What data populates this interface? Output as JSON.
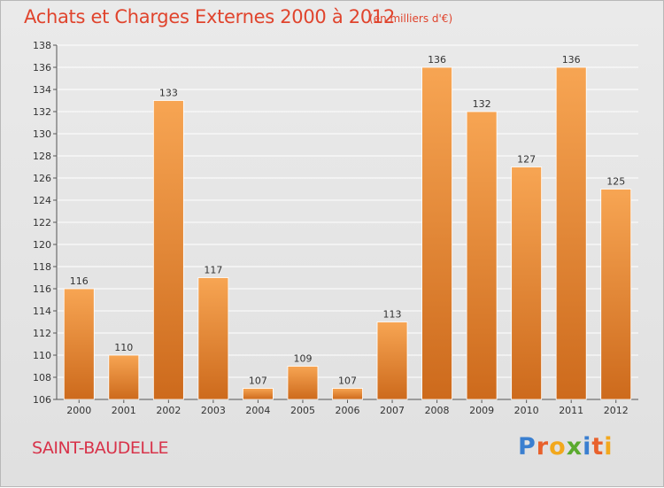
{
  "title": "Achats et Charges Externes 2000 à 2012",
  "subtitle": "(en milliers d'€)",
  "location": "SAINT-BAUDELLE",
  "brand": {
    "name": "Proxiti",
    "letters": [
      "P",
      "r",
      "o",
      "x",
      "i",
      "t",
      "i"
    ],
    "letter_colors": [
      "#3a7fd0",
      "#e8612c",
      "#f2a81d",
      "#5aaa2e",
      "#3a7fd0",
      "#e8612c",
      "#f2a81d"
    ]
  },
  "colors": {
    "bar_top": "#f7a553",
    "bar_bottom": "#cd6a1c",
    "grid": "#ffffff",
    "axis_text": "#333333",
    "title": "#e0442d"
  },
  "chart_data": {
    "type": "bar",
    "title": "Achats et Charges Externes 2000 à 2012",
    "subtitle": "(en milliers d'€)",
    "xlabel": "",
    "ylabel": "",
    "ylim": [
      106,
      138
    ],
    "yticks": [
      106,
      108,
      110,
      112,
      114,
      116,
      118,
      120,
      122,
      124,
      126,
      128,
      130,
      132,
      134,
      136,
      138
    ],
    "grid": true,
    "categories": [
      "2000",
      "2001",
      "2002",
      "2003",
      "2004",
      "2005",
      "2006",
      "2007",
      "2008",
      "2009",
      "2010",
      "2011",
      "2012"
    ],
    "values": [
      116,
      110,
      133,
      117,
      107,
      109,
      107,
      113,
      136,
      132,
      127,
      136,
      125
    ],
    "data_labels": [
      "116",
      "110",
      "133",
      "117",
      "107",
      "109",
      "107",
      "113",
      "136",
      "132",
      "127",
      "136",
      "125"
    ]
  }
}
